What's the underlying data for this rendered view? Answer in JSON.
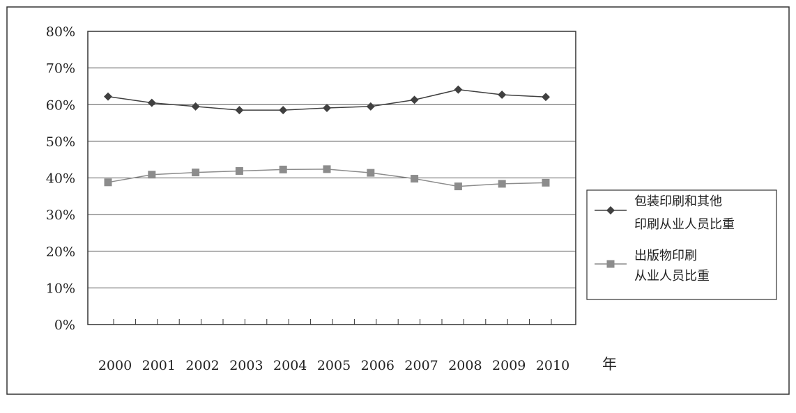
{
  "chart_data": {
    "type": "line",
    "x": [
      "2000",
      "2001",
      "2002",
      "2003",
      "2004",
      "2005",
      "2006",
      "2007",
      "2008",
      "2009",
      "2010"
    ],
    "x_unit_label": "年",
    "ylim": [
      0,
      0.8
    ],
    "y_ticks": [
      "0%",
      "10%",
      "20%",
      "30%",
      "40%",
      "50%",
      "60%",
      "70%",
      "80%"
    ],
    "grid": true,
    "legend_position": "right",
    "series": [
      {
        "name_lines": [
          "包装印刷和其他",
          "印刷从业人员比重"
        ],
        "marker": "diamond",
        "color": "#404040",
        "values": [
          0.622,
          0.605,
          0.595,
          0.585,
          0.585,
          0.591,
          0.595,
          0.613,
          0.641,
          0.627,
          0.621
        ]
      },
      {
        "name_lines": [
          "出版物印刷",
          "从业人员比重"
        ],
        "marker": "square",
        "color": "#8c8c8c",
        "values": [
          0.388,
          0.409,
          0.415,
          0.419,
          0.423,
          0.424,
          0.414,
          0.398,
          0.377,
          0.384,
          0.387
        ]
      }
    ]
  }
}
